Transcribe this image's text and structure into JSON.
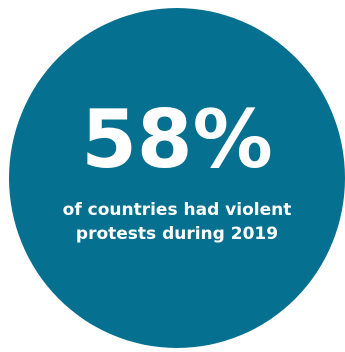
{
  "infographic": {
    "value": "58%",
    "caption_line1": "of countries had violent",
    "caption_line2": "protests during 2019",
    "colors": {
      "circle": "#05708f",
      "text": "#ffffff",
      "background": "#ffffff"
    }
  }
}
